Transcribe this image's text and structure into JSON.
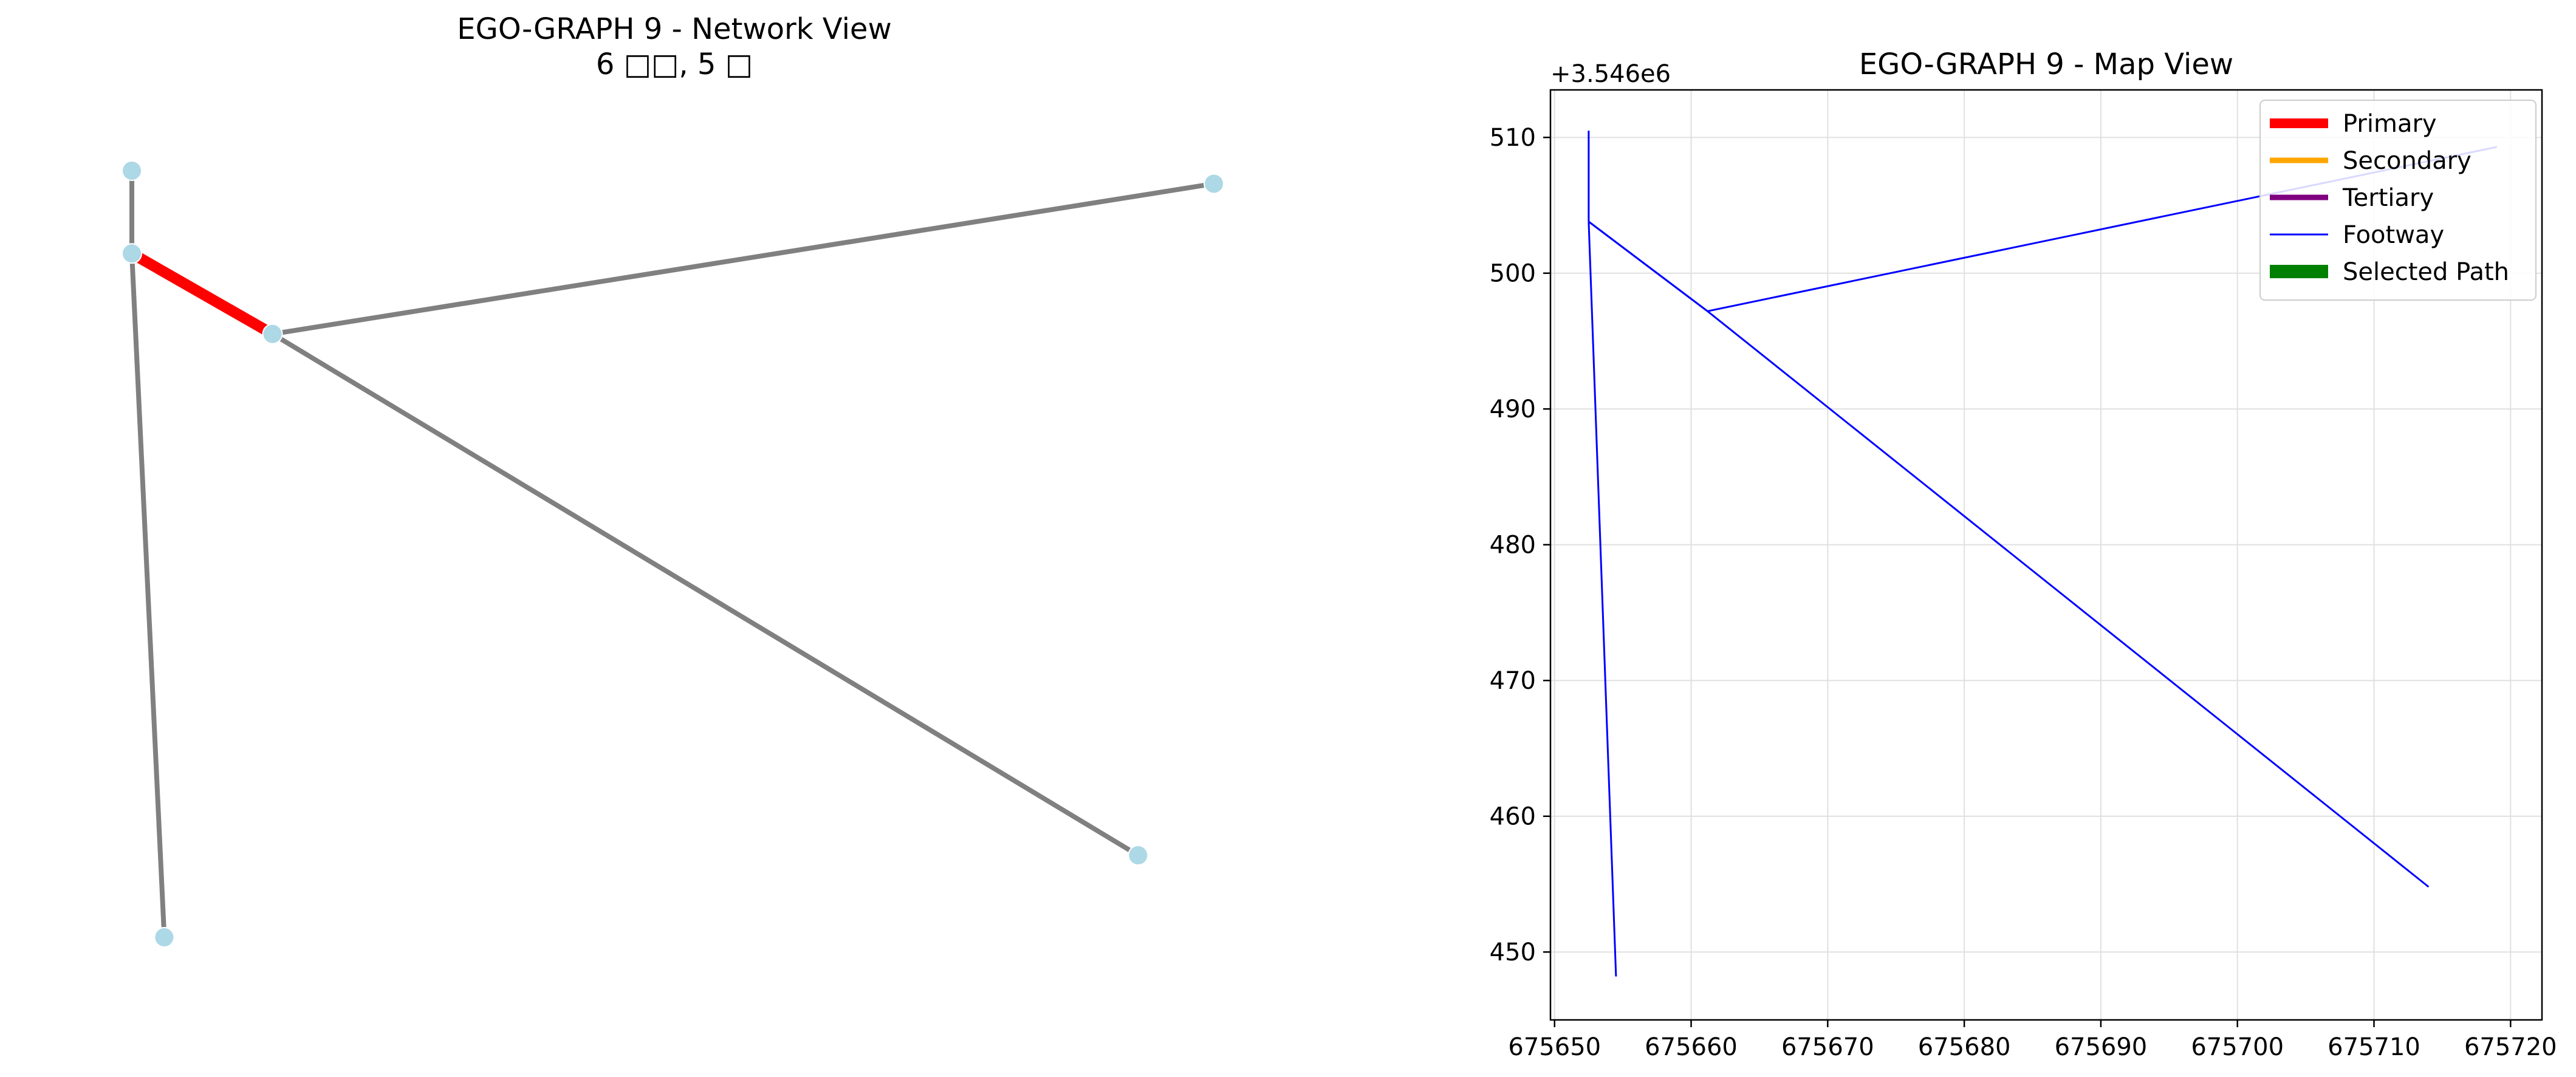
{
  "colors": {
    "node": "#add8e6",
    "edge": "#808080",
    "primary": "#ff0000",
    "secondary": "#ffa500",
    "tertiary": "#800080",
    "footway": "#0000ff",
    "selected_path": "#008000",
    "grid": "#e0e0e0"
  },
  "chart_data": [
    {
      "type": "network",
      "title_line1": "EGO-GRAPH 9 - Network View",
      "title_line2": "6 □□, 5 □",
      "axes": "off",
      "nodes": [
        {
          "id": "n1",
          "x": 0.0,
          "y": 1.0
        },
        {
          "id": "n2",
          "x": 0.0,
          "y": 0.892
        },
        {
          "id": "n3",
          "x": 0.13,
          "y": 0.787
        },
        {
          "id": "n4",
          "x": 1.0,
          "y": 0.983
        },
        {
          "id": "n5",
          "x": 0.93,
          "y": 0.107
        },
        {
          "id": "n6",
          "x": 0.03,
          "y": 0.0
        }
      ],
      "edges": [
        {
          "from": "n1",
          "to": "n2",
          "highlight": false
        },
        {
          "from": "n2",
          "to": "n3",
          "highlight": true
        },
        {
          "from": "n3",
          "to": "n4",
          "highlight": false
        },
        {
          "from": "n3",
          "to": "n5",
          "highlight": false
        },
        {
          "from": "n2",
          "to": "n6",
          "highlight": false
        }
      ]
    },
    {
      "type": "line",
      "title": "EGO-GRAPH 9 - Map View",
      "xlabel": "",
      "ylabel": "",
      "y_offset_label": "+3.546e6",
      "xlim": [
        675649.7,
        675722.3
      ],
      "ylim": [
        445.0,
        513.5
      ],
      "xticks": [
        675650,
        675660,
        675670,
        675680,
        675690,
        675700,
        675710,
        675720
      ],
      "yticks": [
        450,
        460,
        470,
        480,
        490,
        500,
        510
      ],
      "grid": true,
      "legend_position": "top-right",
      "legend": [
        {
          "label": "Primary",
          "color": "#ff0000",
          "width": "thick"
        },
        {
          "label": "Secondary",
          "color": "#ffa500",
          "width": "medium"
        },
        {
          "label": "Tertiary",
          "color": "#800080",
          "width": "medium"
        },
        {
          "label": "Footway",
          "color": "#0000ff",
          "width": "thin"
        },
        {
          "label": "Selected Path",
          "color": "#008000",
          "width": "extra-thick"
        }
      ],
      "series": [
        {
          "category": "Footway",
          "points": [
            [
              675652.5,
              510.5
            ],
            [
              675652.5,
              503.8
            ]
          ]
        },
        {
          "category": "Footway",
          "points": [
            [
              675652.5,
              503.8
            ],
            [
              675661.2,
              497.2
            ]
          ]
        },
        {
          "category": "Footway",
          "points": [
            [
              675652.5,
              503.8
            ],
            [
              675661.2,
              497.2
            ]
          ]
        },
        {
          "category": "Footway",
          "points": [
            [
              675661.2,
              497.2
            ],
            [
              675719.0,
              509.3
            ]
          ]
        },
        {
          "category": "Footway",
          "points": [
            [
              675661.2,
              497.2
            ],
            [
              675714.0,
              454.8
            ]
          ]
        },
        {
          "category": "Footway",
          "points": [
            [
              675652.5,
              503.8
            ],
            [
              675654.5,
              448.2
            ]
          ]
        }
      ]
    }
  ]
}
